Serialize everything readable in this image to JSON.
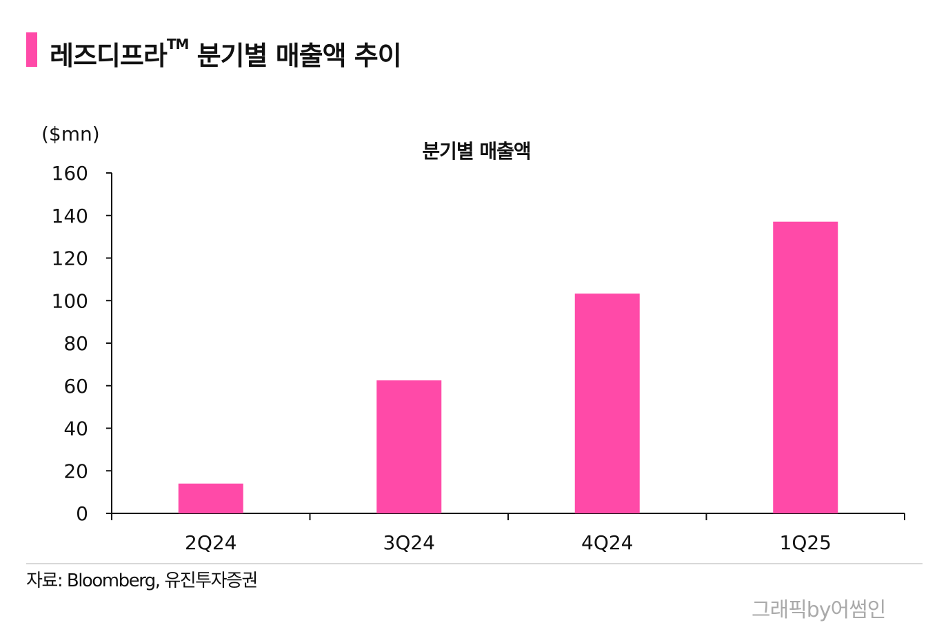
{
  "header": {
    "title": "레즈디프라",
    "title_mark": "TM",
    "title_rest": " 분기별 매출액 추이",
    "accent_color": "#ff4aa8"
  },
  "chart_data": {
    "type": "bar",
    "title": "분기별 매출액",
    "unit_label": "($mn)",
    "categories": [
      "2Q24",
      "3Q24",
      "4Q24",
      "1Q25"
    ],
    "values": [
      14,
      62.5,
      103.3,
      137.1
    ],
    "ylim": [
      0,
      160
    ],
    "yticks": [
      0,
      20,
      40,
      60,
      80,
      100,
      120,
      140,
      160
    ],
    "bar_color": "#ff4aa8",
    "grid": false,
    "legend": "none"
  },
  "footer": {
    "source": "자료: Bloomberg, 유진투자증권",
    "credit": "그래픽by어썸인"
  }
}
